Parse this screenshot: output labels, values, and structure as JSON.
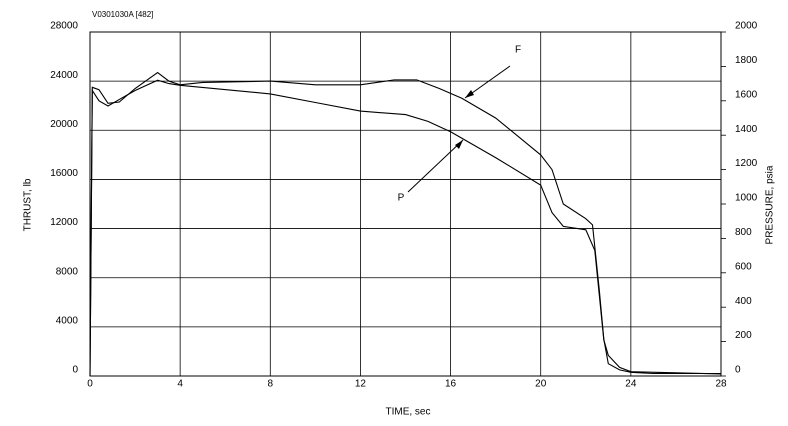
{
  "chart_data": {
    "type": "line",
    "subtitle": "V0301030A [482]",
    "x_label": "TIME, sec",
    "y_label": "THRUST, lb",
    "y2_label": "PRESSURE, psia",
    "xlim": [
      0,
      28
    ],
    "xticks": [
      0,
      4,
      8,
      12,
      16,
      20,
      24,
      28
    ],
    "ylim": [
      0,
      28000
    ],
    "yticks": [
      0,
      4000,
      8000,
      12000,
      16000,
      20000,
      24000,
      28000
    ],
    "y2lim": [
      0,
      2000
    ],
    "y2ticks": [
      0,
      200,
      400,
      600,
      800,
      1000,
      1200,
      1400,
      1600,
      1800,
      2000
    ],
    "grid": true,
    "series": [
      {
        "name": "F",
        "color": "#000000",
        "x": [
          0,
          0.1,
          0.4,
          0.8,
          1.3,
          2,
          3,
          3.5,
          4,
          5,
          8,
          10,
          12,
          13.5,
          14.5,
          15.5,
          16.5,
          18,
          19,
          20,
          20.5,
          21,
          22,
          22.3,
          22.6,
          22.8,
          23,
          23.5,
          24,
          25,
          28
        ],
        "values": [
          0,
          23500,
          23300,
          22200,
          22300,
          23400,
          24700,
          24000,
          23700,
          23900,
          24000,
          23700,
          23700,
          24100,
          24100,
          23400,
          22600,
          21000,
          19500,
          18000,
          16800,
          14000,
          12800,
          12300,
          7000,
          3000,
          1000,
          500,
          300,
          200,
          200
        ]
      },
      {
        "name": "P",
        "color": "#000000",
        "axis": "y2",
        "x": [
          0,
          0.1,
          0.4,
          0.8,
          1.2,
          2,
          3,
          3.5,
          4,
          8,
          10,
          12,
          14,
          15,
          16,
          18,
          20,
          20.5,
          21,
          22,
          22.4,
          22.8,
          23,
          23.5,
          24,
          28
        ],
        "values": [
          0,
          1660,
          1600,
          1570,
          1600,
          1660,
          1720,
          1700,
          1690,
          1640,
          1590,
          1540,
          1520,
          1480,
          1420,
          1270,
          1110,
          950,
          870,
          850,
          730,
          210,
          120,
          50,
          25,
          12
        ]
      }
    ]
  }
}
